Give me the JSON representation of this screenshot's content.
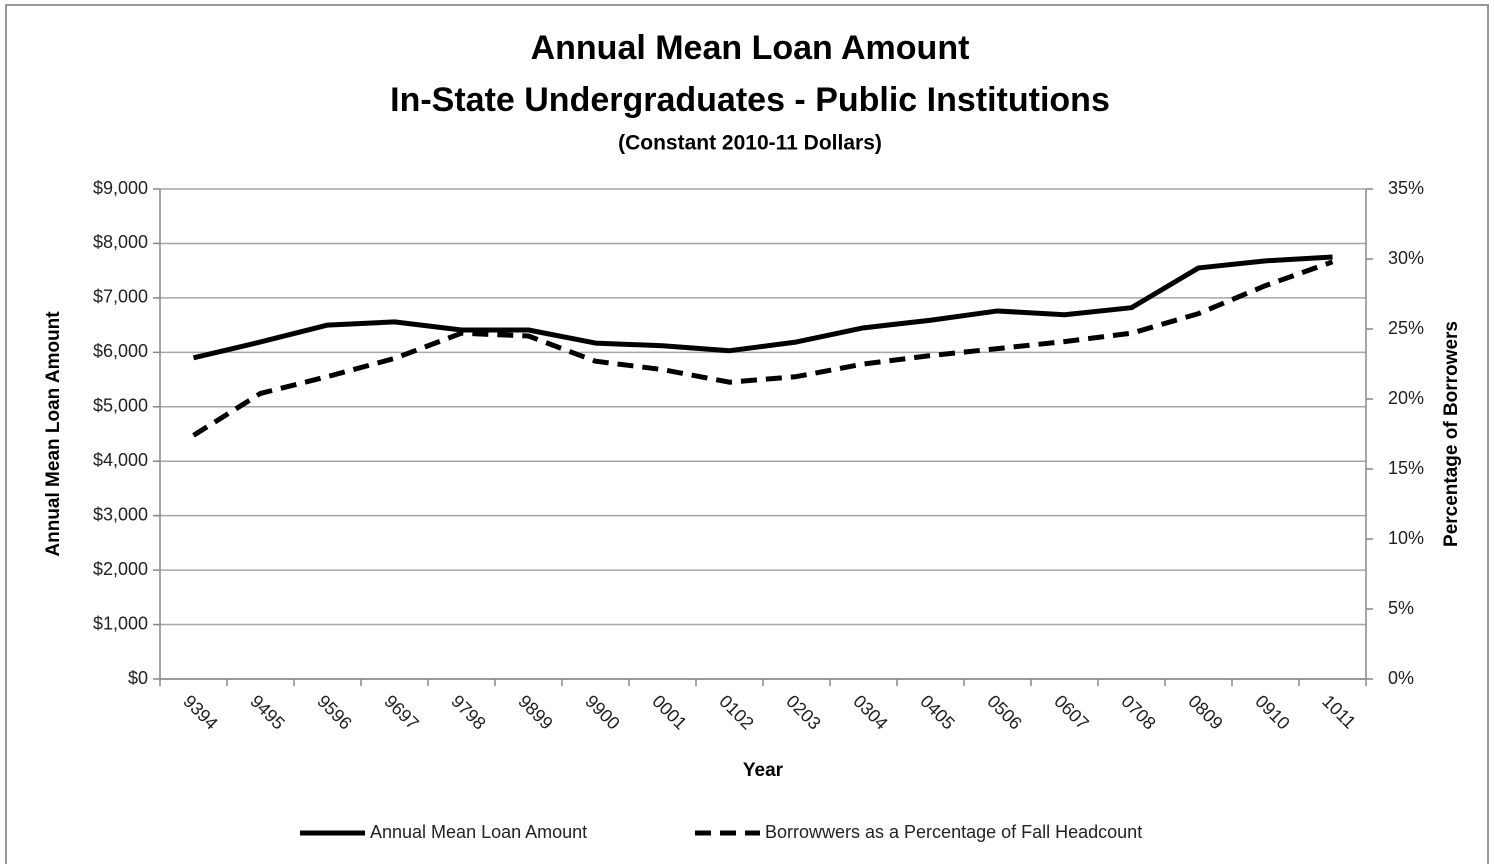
{
  "chart_data": {
    "type": "line",
    "title": [
      "Annual Mean Loan Amount",
      "In-State Undergraduates - Public Institutions"
    ],
    "subtitle": "(Constant 2010-11 Dollars)",
    "x_label": "Year",
    "y_label": "Annual Mean Loan Amount",
    "y2_label": "Percentage of Borrowers",
    "categories": [
      "9394",
      "9495",
      "9596",
      "9697",
      "9798",
      "9899",
      "9900",
      "0001",
      "0102",
      "0203",
      "0304",
      "0405",
      "0506",
      "0607",
      "0708",
      "0809",
      "0910",
      "1011"
    ],
    "series": [
      {
        "name": "Annual Mean Loan Amount",
        "color": "#000000",
        "dash": false,
        "values": [
          5900,
          6190,
          6500,
          6560,
          6410,
          6410,
          6170,
          6120,
          6030,
          6190,
          6450,
          6590,
          6760,
          6690,
          6820,
          7550,
          7680,
          7750
        ]
      },
      {
        "name": "Borrowwers as a Percentage of Fall Headcount",
        "color": "#000000",
        "dash": true,
        "axis": "y2",
        "values": [
          17.4,
          20.4,
          21.6,
          22.9,
          24.7,
          24.5,
          22.7,
          22.1,
          21.2,
          21.6,
          22.5,
          23.1,
          23.6,
          24.1,
          24.7,
          26.1,
          28.1,
          29.8
        ]
      }
    ],
    "ylim": [
      0,
      9000
    ],
    "yticks": [
      {
        "value": 0,
        "label": "$0"
      },
      {
        "value": 1000,
        "label": "$1,000"
      },
      {
        "value": 2000,
        "label": "$2,000"
      },
      {
        "value": 3000,
        "label": "$3,000"
      },
      {
        "value": 4000,
        "label": "$4,000"
      },
      {
        "value": 5000,
        "label": "$5,000"
      },
      {
        "value": 6000,
        "label": "$6,000"
      },
      {
        "value": 7000,
        "label": "$7,000"
      },
      {
        "value": 8000,
        "label": "$8,000"
      },
      {
        "value": 9000,
        "label": "$9,000"
      }
    ],
    "y2lim": [
      0,
      35
    ],
    "y2ticks": [
      {
        "value": 0,
        "label": "0%"
      },
      {
        "value": 5,
        "label": "5%"
      },
      {
        "value": 10,
        "label": "10%"
      },
      {
        "value": 15,
        "label": "15%"
      },
      {
        "value": 20,
        "label": "20%"
      },
      {
        "value": 25,
        "label": "25%"
      },
      {
        "value": 30,
        "label": "30%"
      },
      {
        "value": 35,
        "label": "35%"
      }
    ],
    "grid": true,
    "legend": "bottom"
  }
}
